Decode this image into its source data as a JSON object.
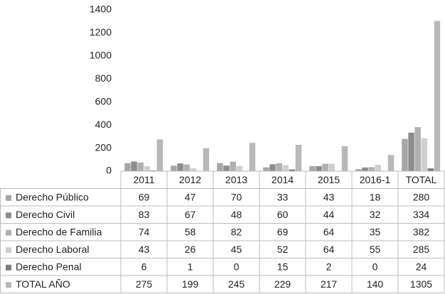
{
  "chart_data": {
    "type": "bar",
    "categories": [
      "2011",
      "2012",
      "2013",
      "2014",
      "2015",
      "2016-1",
      "TOTAL"
    ],
    "series": [
      {
        "name": "Derecho Público",
        "color": "#a6a6a6",
        "values": [
          69,
          47,
          70,
          33,
          43,
          18,
          280
        ]
      },
      {
        "name": "Derecho Civil",
        "color": "#8c8c8c",
        "values": [
          83,
          67,
          48,
          60,
          44,
          32,
          334
        ]
      },
      {
        "name": "Derecho de Familia",
        "color": "#b0b0b0",
        "values": [
          74,
          58,
          82,
          69,
          64,
          35,
          382
        ]
      },
      {
        "name": "Derecho Laboral",
        "color": "#cfcfcf",
        "values": [
          43,
          26,
          45,
          52,
          64,
          55,
          285
        ]
      },
      {
        "name": "Derecho Penal",
        "color": "#7a7a7a",
        "values": [
          6,
          1,
          0,
          15,
          2,
          0,
          24
        ]
      },
      {
        "name": "TOTAL AÑO",
        "color": "#b8b8b8",
        "values": [
          275,
          199,
          245,
          229,
          217,
          140,
          1305
        ]
      }
    ],
    "ylim": [
      0,
      1400
    ],
    "yticks": [
      0,
      200,
      400,
      600,
      800,
      1000,
      1200,
      1400
    ],
    "grid": false
  }
}
